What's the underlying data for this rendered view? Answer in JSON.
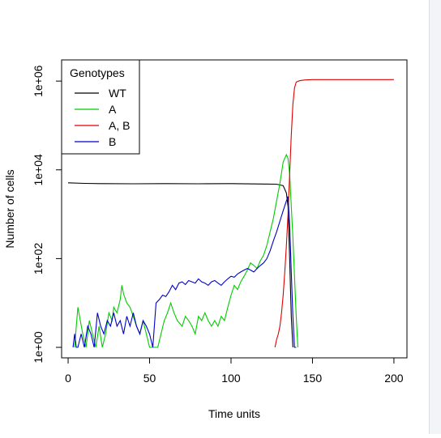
{
  "chart_data": {
    "type": "line",
    "title": "",
    "xlabel": "Time units",
    "ylabel": "Number of cells",
    "x_ticks": [
      0,
      50,
      100,
      150,
      200
    ],
    "x_tick_labels": [
      "0",
      "50",
      "100",
      "150",
      "200"
    ],
    "xlim": [
      -4,
      208
    ],
    "y_scale": "log10",
    "y_ticks": [
      1,
      100,
      10000,
      1000000
    ],
    "y_tick_labels": [
      "1e+00",
      "1e+02",
      "1e+04",
      "1e+06"
    ],
    "ylim": [
      0.58,
      3000000
    ],
    "grid": false,
    "legend": {
      "title": "Genotypes",
      "position": "top-left",
      "entries": [
        "WT",
        "A",
        "A, B",
        "B"
      ]
    },
    "series": [
      {
        "name": "WT",
        "color": "#000000",
        "x": [
          0,
          10,
          20,
          40,
          60,
          80,
          100,
          120,
          128,
          132,
          134,
          135,
          136,
          137,
          138
        ],
        "y": [
          5100,
          4950,
          4900,
          4850,
          4900,
          4850,
          4900,
          4800,
          4750,
          4400,
          3000,
          1500,
          100,
          5,
          1
        ]
      },
      {
        "name": "A",
        "color": "#00cc00",
        "x": [
          4,
          5,
          6,
          7,
          9,
          11,
          13,
          15,
          17,
          19,
          21,
          23,
          25,
          27,
          28,
          30,
          32,
          33,
          34,
          36,
          38,
          40,
          42,
          44,
          46,
          48,
          50,
          52,
          55,
          57,
          59,
          61,
          63,
          65,
          67,
          70,
          72,
          74,
          76,
          78,
          80,
          82,
          84,
          86,
          88,
          90,
          92,
          94,
          96,
          98,
          100,
          102,
          104,
          106,
          108,
          110,
          112,
          114,
          116,
          118,
          120,
          122,
          124,
          126,
          128,
          130,
          132,
          134,
          135,
          136,
          137,
          138,
          139,
          140,
          141
        ],
        "y": [
          1,
          3,
          8,
          5,
          2,
          1,
          4,
          2,
          1,
          3,
          1,
          2,
          6,
          4,
          8,
          6,
          12,
          25,
          16,
          10,
          8,
          5,
          3,
          2,
          4,
          2,
          1,
          1,
          1,
          2,
          4,
          6,
          10,
          6,
          4,
          3,
          5,
          4,
          3,
          2,
          5,
          4,
          6,
          4,
          3,
          4,
          3,
          5,
          4,
          8,
          15,
          25,
          20,
          30,
          40,
          55,
          80,
          70,
          60,
          90,
          120,
          200,
          400,
          800,
          2000,
          5000,
          15000,
          22000,
          18000,
          8000,
          1500,
          300,
          40,
          5,
          1
        ]
      },
      {
        "name": "A, B",
        "color": "#dd0000",
        "x": [
          127,
          128,
          129,
          130,
          131,
          132,
          133,
          134,
          135,
          136,
          137,
          138,
          139,
          140,
          142,
          145,
          150,
          160,
          170,
          180,
          190,
          200
        ],
        "y": [
          1,
          1.5,
          2,
          3,
          6,
          15,
          50,
          200,
          1000,
          8000,
          60000,
          300000,
          700000,
          950000,
          1020000,
          1060000,
          1080000,
          1080000,
          1080000,
          1080000,
          1080000,
          1080000
        ]
      },
      {
        "name": "B",
        "color": "#0000cc",
        "x": [
          3,
          4,
          5,
          6,
          8,
          10,
          12,
          14,
          16,
          18,
          20,
          22,
          24,
          26,
          28,
          30,
          32,
          34,
          36,
          38,
          40,
          42,
          44,
          46,
          48,
          50,
          52,
          54,
          56,
          58,
          60,
          62,
          64,
          66,
          68,
          70,
          72,
          74,
          76,
          78,
          80,
          82,
          84,
          86,
          88,
          90,
          92,
          94,
          96,
          98,
          100,
          102,
          104,
          106,
          108,
          110,
          112,
          114,
          116,
          118,
          120,
          122,
          124,
          126,
          128,
          130,
          132,
          134,
          135,
          136,
          137,
          138,
          139,
          140
        ],
        "y": [
          1,
          2,
          1,
          1,
          2,
          1,
          3,
          2,
          1,
          6,
          3,
          2,
          4,
          3,
          6,
          3,
          4,
          2,
          5,
          3,
          6,
          3,
          2,
          4,
          3,
          2,
          1,
          10,
          12,
          15,
          14,
          18,
          25,
          20,
          28,
          30,
          26,
          32,
          30,
          28,
          35,
          30,
          28,
          25,
          30,
          32,
          28,
          25,
          30,
          35,
          40,
          38,
          45,
          50,
          55,
          60,
          55,
          50,
          60,
          70,
          80,
          100,
          150,
          250,
          400,
          700,
          1200,
          2000,
          2500,
          600,
          50,
          5,
          1,
          1
        ]
      }
    ]
  }
}
